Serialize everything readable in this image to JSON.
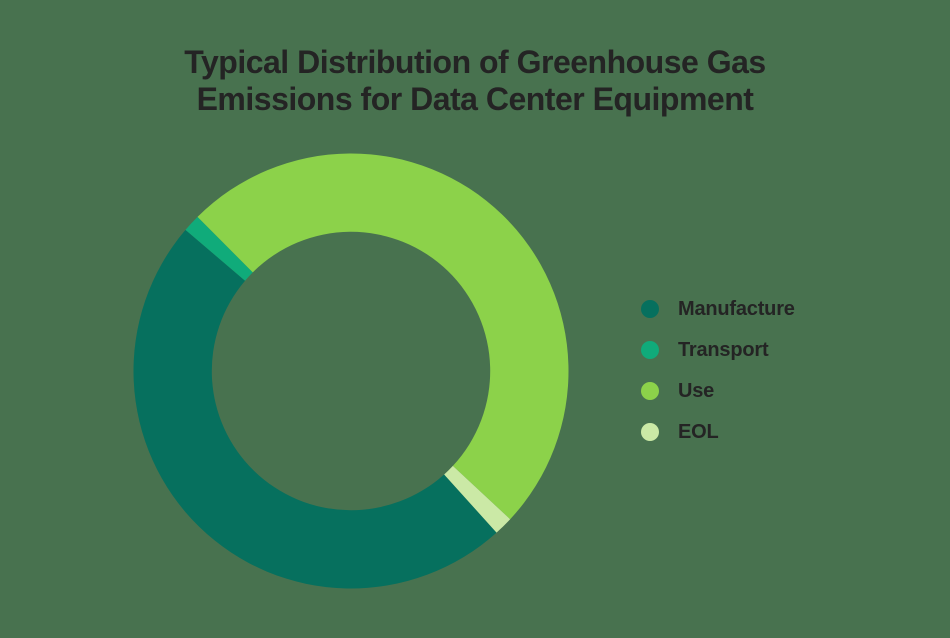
{
  "background_color": "#48724f",
  "text_color": "#242424",
  "chart_data": {
    "type": "donut",
    "title": "Typical Distribution of Greenhouse Gas Emissions for Data Center Equipment",
    "legend_position": "right",
    "start_angle_deg_clockwise_from_top": 138,
    "inner_radius_ratio": 0.64,
    "segments": [
      {
        "label": "Manufacture",
        "value_pct": 47.9,
        "color": "#06705e"
      },
      {
        "label": "Transport",
        "value_pct": 1.3,
        "color": "#10ab7a"
      },
      {
        "label": "Use",
        "value_pct": 49.4,
        "color": "#8cd24a"
      },
      {
        "label": "EOL",
        "value_pct": 1.4,
        "color": "#cbe9a6"
      }
    ]
  }
}
